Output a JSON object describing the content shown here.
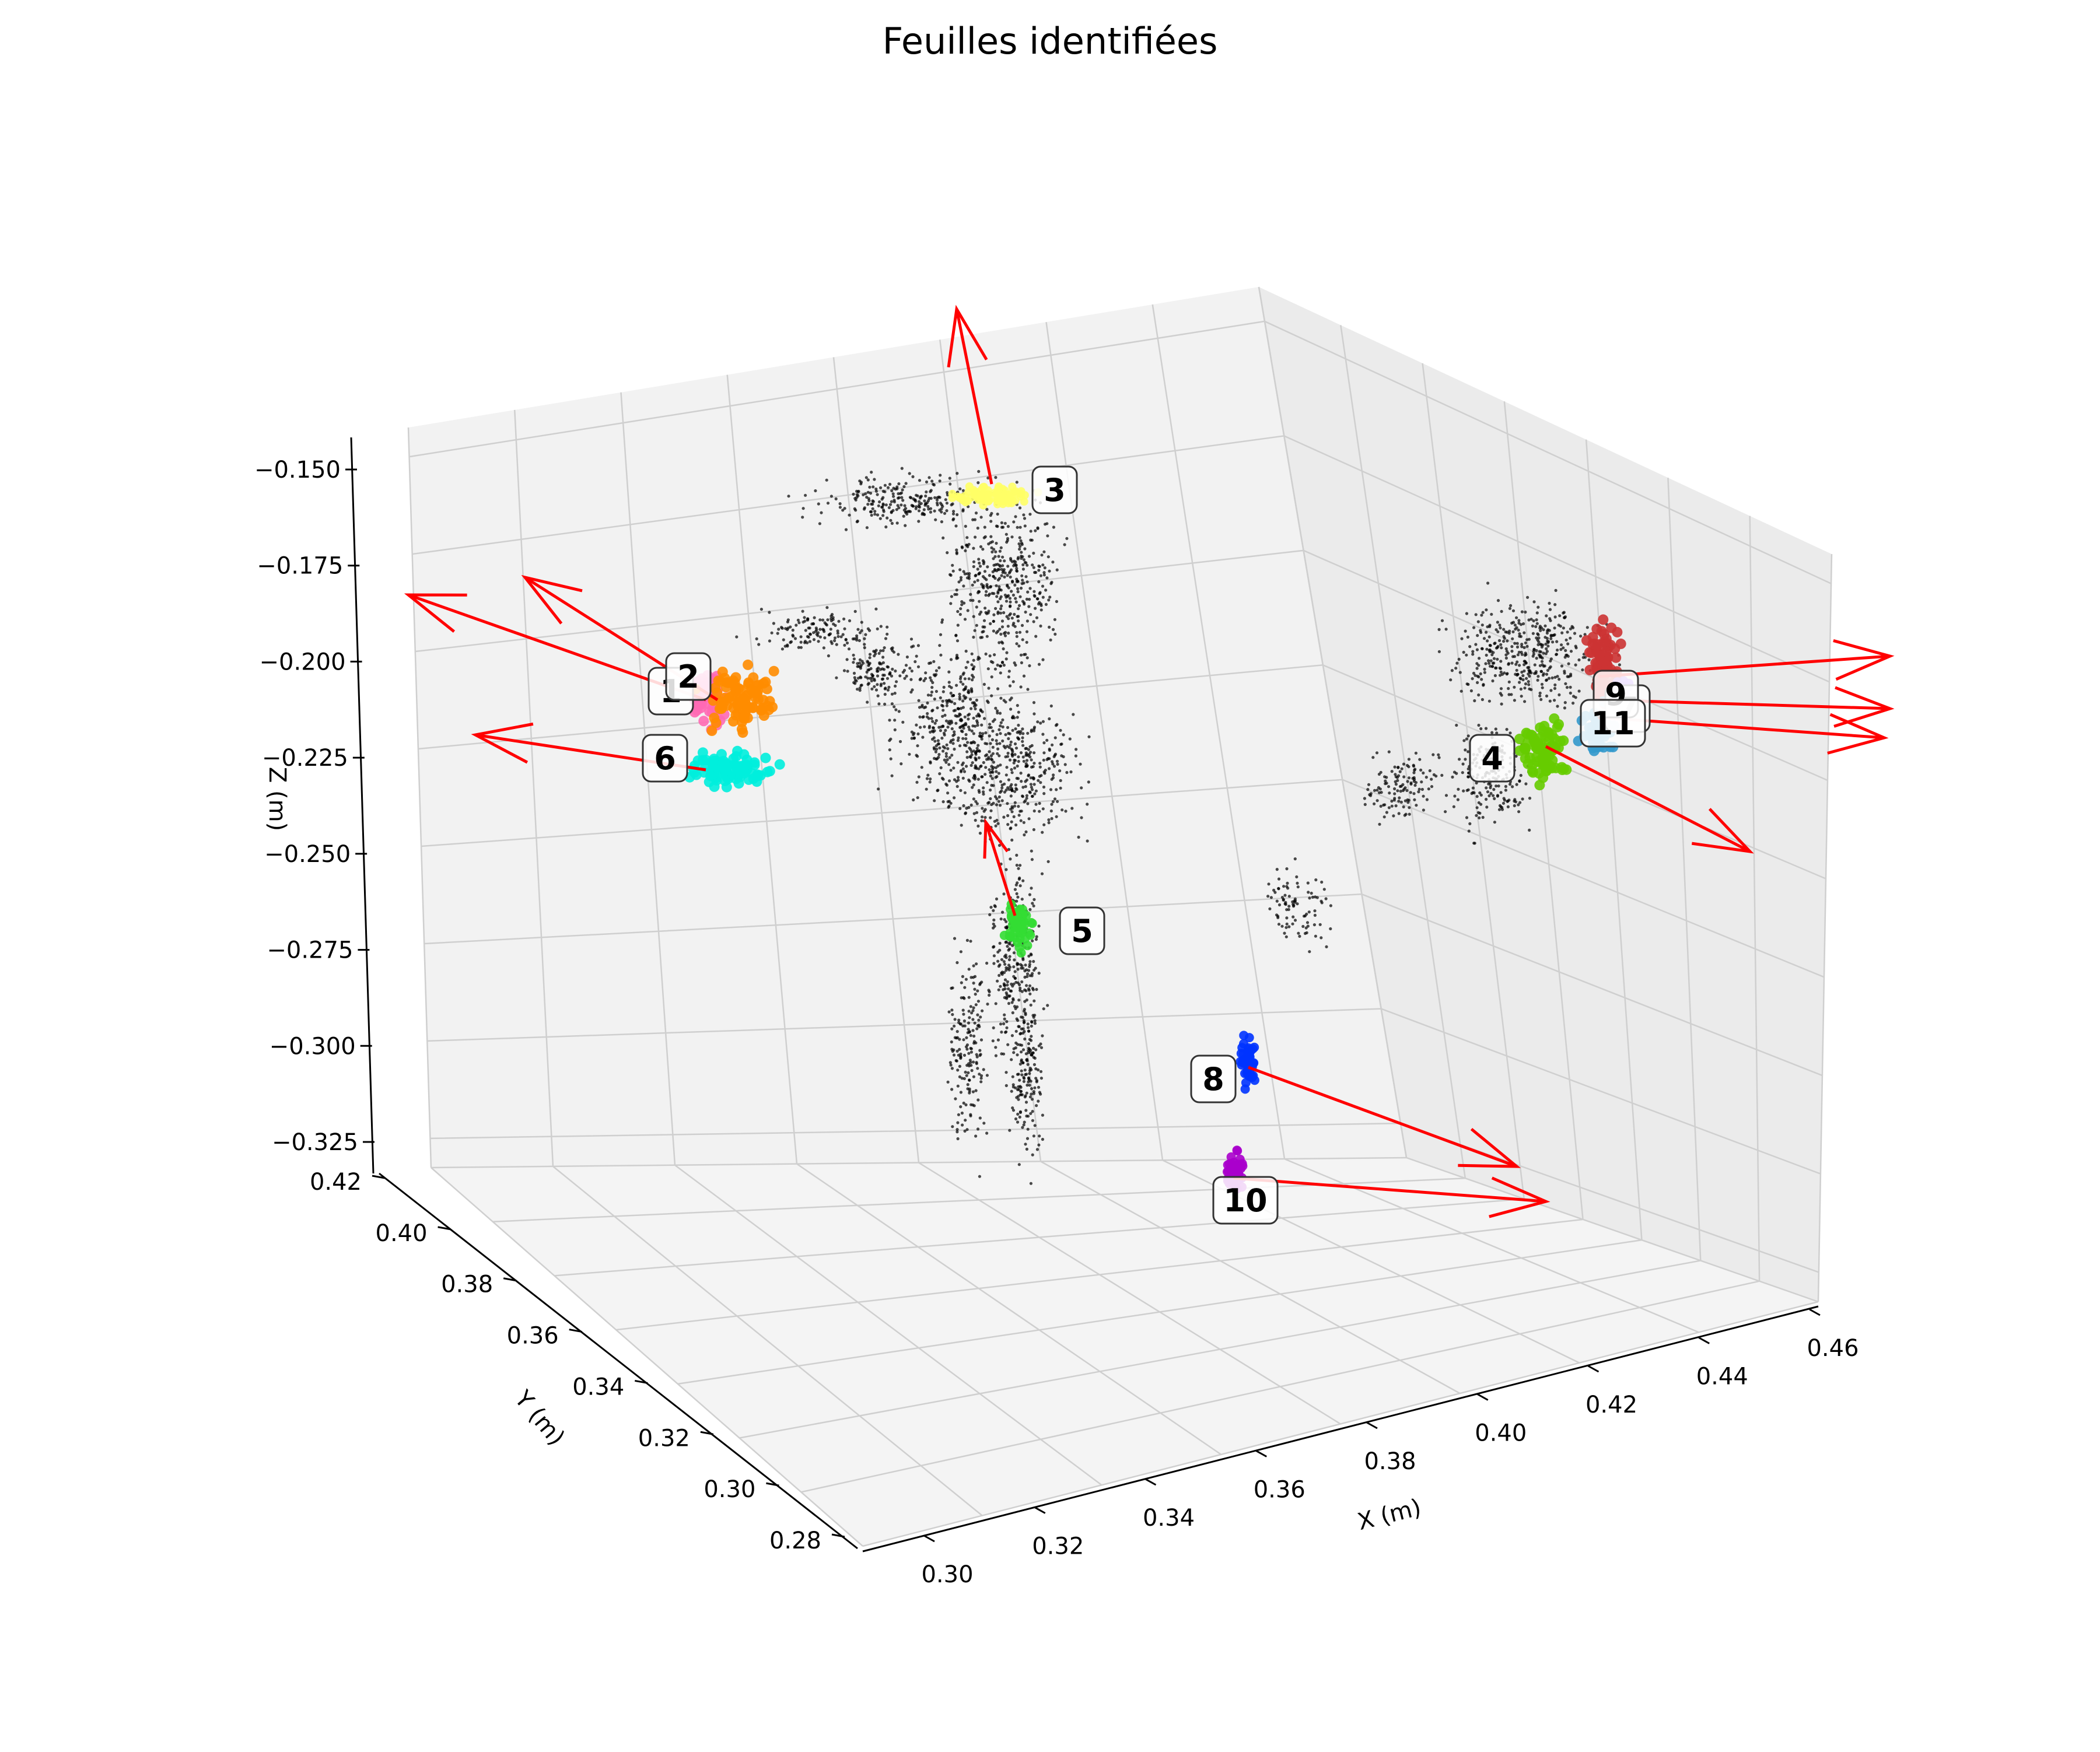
{
  "chart_data": {
    "type": "scatter3d",
    "title": "Feuilles identifiées",
    "xlabel": "X (m)",
    "ylabel": "Y (m)",
    "zlabel": "Z (m)",
    "xlim": [
      0.3,
      0.46
    ],
    "ylim": [
      0.28,
      0.42
    ],
    "zlim": [
      -0.325,
      -0.15
    ],
    "x_ticks": [
      "0.30",
      "0.32",
      "0.34",
      "0.36",
      "0.38",
      "0.40",
      "0.42",
      "0.44",
      "0.46"
    ],
    "y_ticks": [
      "0.28",
      "0.30",
      "0.32",
      "0.34",
      "0.36",
      "0.38",
      "0.40",
      "0.42"
    ],
    "z_ticks": [
      "−0.150",
      "−0.175",
      "−0.200",
      "−0.225",
      "−0.250",
      "−0.275",
      "−0.300",
      "−0.325"
    ],
    "grid": true,
    "leaves": [
      {
        "id": "1",
        "label": "1",
        "color": "#ff69b4"
      },
      {
        "id": "2",
        "label": "2",
        "color": "#ff8c00"
      },
      {
        "id": "3",
        "label": "3",
        "color": "#ffff66"
      },
      {
        "id": "4",
        "label": "4",
        "color": "#66cc00"
      },
      {
        "id": "5",
        "label": "5",
        "color": "#33dd33"
      },
      {
        "id": "6",
        "label": "6",
        "color": "#00eedd"
      },
      {
        "id": "7",
        "label": "7",
        "color": "#cc3333"
      },
      {
        "id": "8",
        "label": "8",
        "color": "#0033ff"
      },
      {
        "id": "9",
        "label": "9",
        "color": "#9955ff"
      },
      {
        "id": "10",
        "label": "10",
        "color": "#aa00cc"
      },
      {
        "id": "11",
        "label": "11",
        "color": "#3399cc"
      }
    ],
    "point_cloud_color": "#000000",
    "normal_vector_color": "#ff0000"
  }
}
